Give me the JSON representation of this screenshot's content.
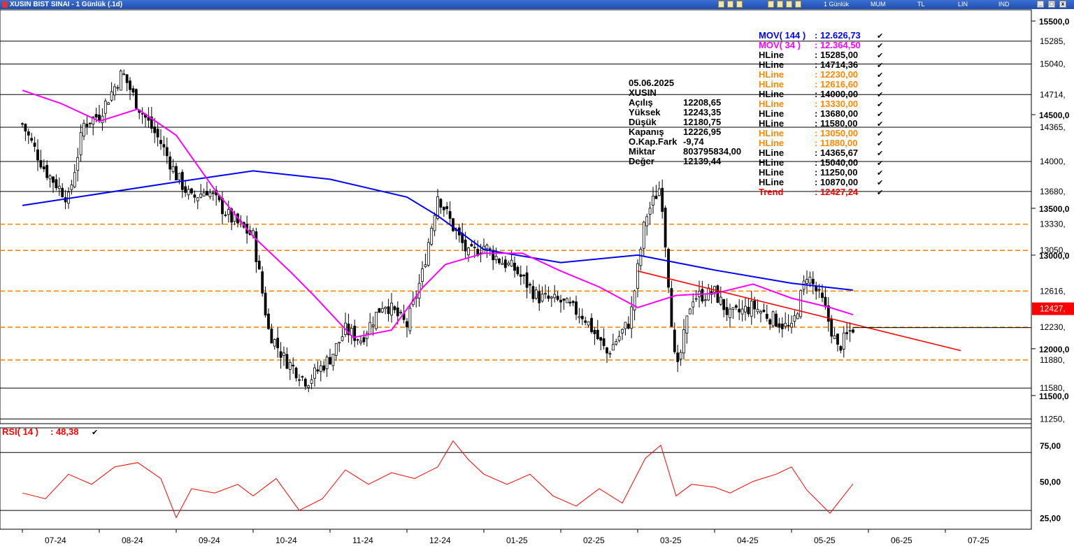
{
  "window": {
    "title": "XUSIN BIST SINAI - 1 Günlük (.1d)",
    "toolbar": [
      "1 Günlük",
      "MUM",
      "TL",
      "LIN",
      "IND"
    ]
  },
  "info": {
    "date": "05.06.2025",
    "symbol": "XUSIN",
    "rows": [
      {
        "label": "Açılış",
        "value": "12208,65"
      },
      {
        "label": "Yüksek",
        "value": "12243,35"
      },
      {
        "label": "Düşük",
        "value": "12180,75"
      },
      {
        "label": "Kapanış",
        "value": "12226,95"
      },
      {
        "label": "O.Kap.Fark",
        "value": "-9,74"
      },
      {
        "label": "Miktar",
        "value": "803795834,00"
      },
      {
        "label": "Değer",
        "value": "12139,44"
      }
    ]
  },
  "legend": [
    {
      "label": "MOV( 144 )",
      "value": ": 12.626,73",
      "color": "#0000ff"
    },
    {
      "label": "MOV( 34 )",
      "value": ": 12.364,50",
      "color": "#ff00ff"
    },
    {
      "label": "HLine",
      "value": ": 15285,00",
      "color": "#000000"
    },
    {
      "label": "HLine",
      "value": ": 14714,36",
      "color": "#000000"
    },
    {
      "label": "HLine",
      "value": ": 12230,00",
      "color": "#ff8800"
    },
    {
      "label": "HLine",
      "value": ": 12616,60",
      "color": "#ff8800"
    },
    {
      "label": "HLine",
      "value": ": 14000,00",
      "color": "#000000"
    },
    {
      "label": "HLine",
      "value": ": 13330,00",
      "color": "#ff8800"
    },
    {
      "label": "HLine",
      "value": ": 13680,00",
      "color": "#000000"
    },
    {
      "label": "HLine",
      "value": ": 11580,00",
      "color": "#000000"
    },
    {
      "label": "HLine",
      "value": ": 13050,00",
      "color": "#ff8800"
    },
    {
      "label": "HLine",
      "value": ": 11880,00",
      "color": "#ff8800"
    },
    {
      "label": "HLine",
      "value": ": 14365,67",
      "color": "#000000"
    },
    {
      "label": "HLine",
      "value": ": 15040,00",
      "color": "#000000"
    },
    {
      "label": "HLine",
      "value": ": 11250,00",
      "color": "#000000"
    },
    {
      "label": "HLine",
      "value": ": 10870,00",
      "color": "#000000"
    },
    {
      "label": "Trend",
      "value": ": 12427,24",
      "color": "#ff0000"
    }
  ],
  "chart_data": [
    {
      "type": "candlestick",
      "x_ticks": [
        "07-24",
        "08-24",
        "09-24",
        "10-24",
        "11-24",
        "12-24",
        "01-25",
        "02-25",
        "03-25",
        "04-25",
        "05-25",
        "06-25",
        "07-25"
      ],
      "y_ticks": [
        15500,
        14500,
        13500,
        13000,
        12000,
        11500
      ],
      "y_tick_labels": [
        "15500,0",
        "14500,0",
        "13500,0",
        "13000,0",
        "12000,0",
        "11500,0"
      ],
      "ylim": [
        11200,
        15620
      ],
      "hlines": [
        {
          "value": 15285,
          "label": "15285,",
          "style": "solid",
          "color": "#000000"
        },
        {
          "value": 15040,
          "label": "15040,",
          "style": "solid",
          "color": "#000000"
        },
        {
          "value": 14714.36,
          "label": "14714,",
          "style": "solid",
          "color": "#000000"
        },
        {
          "value": 14365.67,
          "label": "14365,",
          "style": "solid",
          "color": "#000000"
        },
        {
          "value": 14000,
          "label": "14000,",
          "style": "solid",
          "color": "#000000"
        },
        {
          "value": 13680,
          "label": "13680,",
          "style": "solid",
          "color": "#000000"
        },
        {
          "value": 13330,
          "label": "13330,",
          "style": "dashed",
          "color": "#ff8800"
        },
        {
          "value": 13050,
          "label": "13050,",
          "style": "dashed",
          "color": "#ff8800"
        },
        {
          "value": 12616.6,
          "label": "12616,",
          "style": "dashed",
          "color": "#ff8800"
        },
        {
          "value": 12230,
          "label": "12230,",
          "style": "dashed",
          "color": "#ff8800"
        },
        {
          "value": 11880,
          "label": "11880,",
          "style": "dashed",
          "color": "#ff8800"
        },
        {
          "value": 11580,
          "label": "11580,",
          "style": "solid",
          "color": "#000000"
        },
        {
          "value": 11250,
          "label": "11250,",
          "style": "solid",
          "color": "#000000"
        }
      ],
      "current": {
        "value": 12427.24,
        "label": "12427,",
        "color": "#ff0000"
      },
      "series": [
        {
          "name": "MOV( 144 )",
          "color": "#0000ff",
          "x": [
            0.0,
            2.0,
            3.0,
            4.0,
            5.0,
            5.4,
            6.0,
            7.0,
            8.0,
            9.0,
            10.0,
            10.8
          ],
          "values": [
            13530,
            13780,
            13900,
            13810,
            13620,
            13420,
            13060,
            12920,
            13000,
            12840,
            12700,
            12626
          ]
        },
        {
          "name": "MOV( 34 )",
          "color": "#ff00ff",
          "x": [
            0.0,
            0.5,
            1.0,
            1.5,
            2.0,
            2.5,
            3.0,
            3.5,
            3.8,
            4.3,
            4.8,
            5.2,
            5.5,
            6.0,
            6.5,
            7.0,
            7.5,
            8.0,
            8.5,
            9.0,
            9.5,
            10.0,
            10.5,
            10.8
          ],
          "values": [
            14760,
            14620,
            14430,
            14560,
            14280,
            13700,
            13200,
            12810,
            12560,
            12120,
            12200,
            12650,
            12900,
            13020,
            13020,
            12830,
            12660,
            12440,
            12570,
            12590,
            12690,
            12540,
            12440,
            12364
          ]
        },
        {
          "name": "Trend",
          "color": "#ff0000",
          "x": [
            8.0,
            12.2
          ],
          "values": [
            12830,
            11980
          ]
        },
        {
          "name": "Close",
          "color": "#000000",
          "x": [
            0.0,
            0.3,
            0.6,
            0.8,
            1.0,
            1.3,
            1.5,
            1.8,
            2.0,
            2.2,
            2.4,
            2.7,
            3.0,
            3.2,
            3.4,
            3.7,
            4.0,
            4.2,
            4.4,
            4.7,
            5.0,
            5.2,
            5.4,
            5.6,
            5.8,
            6.0,
            6.2,
            6.4,
            6.7,
            7.0,
            7.3,
            7.6,
            7.9,
            8.1,
            8.3,
            8.5,
            8.7,
            9.0,
            9.2,
            9.5,
            9.8,
            10.0,
            10.2,
            10.4,
            10.6,
            10.8
          ],
          "values": [
            14400,
            13900,
            13600,
            14400,
            14500,
            14950,
            14600,
            14200,
            13850,
            13600,
            13700,
            13400,
            13200,
            12200,
            11900,
            11650,
            11900,
            12200,
            12100,
            12500,
            12250,
            12800,
            13650,
            13300,
            13000,
            13100,
            12950,
            12850,
            12550,
            12500,
            12350,
            11950,
            12300,
            13400,
            13750,
            11700,
            12550,
            12600,
            12350,
            12450,
            12300,
            12200,
            12800,
            12500,
            12000,
            12226
          ]
        },
        {
          "name": "High",
          "color": "#000000",
          "x": [
            0.0,
            0.8,
            1.0,
            1.3,
            1.5,
            2.0,
            2.2,
            2.4,
            3.0,
            3.4,
            3.7,
            4.2,
            4.7,
            5.2,
            5.4,
            5.6,
            6.0,
            6.4,
            7.0,
            7.3,
            7.9,
            8.1,
            8.3,
            8.5,
            9.0,
            9.5,
            9.8,
            10.2,
            10.8
          ],
          "values": [
            14500,
            14600,
            14700,
            15000,
            14700,
            13920,
            13800,
            13800,
            13300,
            12300,
            12000,
            12400,
            12700,
            13000,
            13700,
            13400,
            13200,
            13000,
            12700,
            12600,
            12400,
            13500,
            13780,
            13300,
            12700,
            12600,
            12500,
            12950,
            12243
          ]
        },
        {
          "name": "Low",
          "color": "#000000",
          "x": [
            0.0,
            0.8,
            1.0,
            1.3,
            1.5,
            2.0,
            2.2,
            2.4,
            3.0,
            3.4,
            3.7,
            4.2,
            4.7,
            5.2,
            5.4,
            5.6,
            6.0,
            6.4,
            7.0,
            7.3,
            7.9,
            8.1,
            8.3,
            8.5,
            9.0,
            9.5,
            9.8,
            10.2,
            10.8
          ],
          "values": [
            13850,
            13900,
            14100,
            14700,
            14400,
            13300,
            13300,
            13350,
            12500,
            11800,
            11550,
            11800,
            12000,
            12150,
            13000,
            12950,
            12800,
            12500,
            12250,
            12200,
            11900,
            12850,
            13300,
            11550,
            12100,
            12200,
            11950,
            12200,
            12180
          ]
        }
      ]
    },
    {
      "type": "line",
      "title": "RSI( 14 )",
      "title_value": ": 48,38",
      "color": "#ff0000",
      "y_ticks": [
        75,
        50,
        25
      ],
      "y_tick_labels": [
        "75,00",
        "50,00",
        "25,00"
      ],
      "ylim": [
        17,
        87
      ],
      "hlines": [
        70,
        30
      ],
      "x": [
        0.0,
        0.3,
        0.6,
        0.9,
        1.2,
        1.5,
        1.8,
        2.0,
        2.2,
        2.5,
        2.8,
        3.0,
        3.3,
        3.6,
        3.9,
        4.2,
        4.5,
        4.8,
        5.1,
        5.4,
        5.6,
        5.8,
        6.0,
        6.3,
        6.6,
        6.9,
        7.2,
        7.5,
        7.8,
        8.1,
        8.3,
        8.5,
        8.7,
        9.0,
        9.2,
        9.5,
        9.8,
        10.0,
        10.2,
        10.5,
        10.8
      ],
      "values": [
        42,
        38,
        55,
        48,
        60,
        63,
        52,
        25,
        45,
        42,
        48,
        40,
        52,
        30,
        38,
        58,
        48,
        56,
        52,
        60,
        78,
        65,
        55,
        48,
        55,
        40,
        33,
        45,
        35,
        66,
        75,
        40,
        48,
        46,
        42,
        50,
        55,
        60,
        44,
        28,
        48.38
      ]
    }
  ]
}
